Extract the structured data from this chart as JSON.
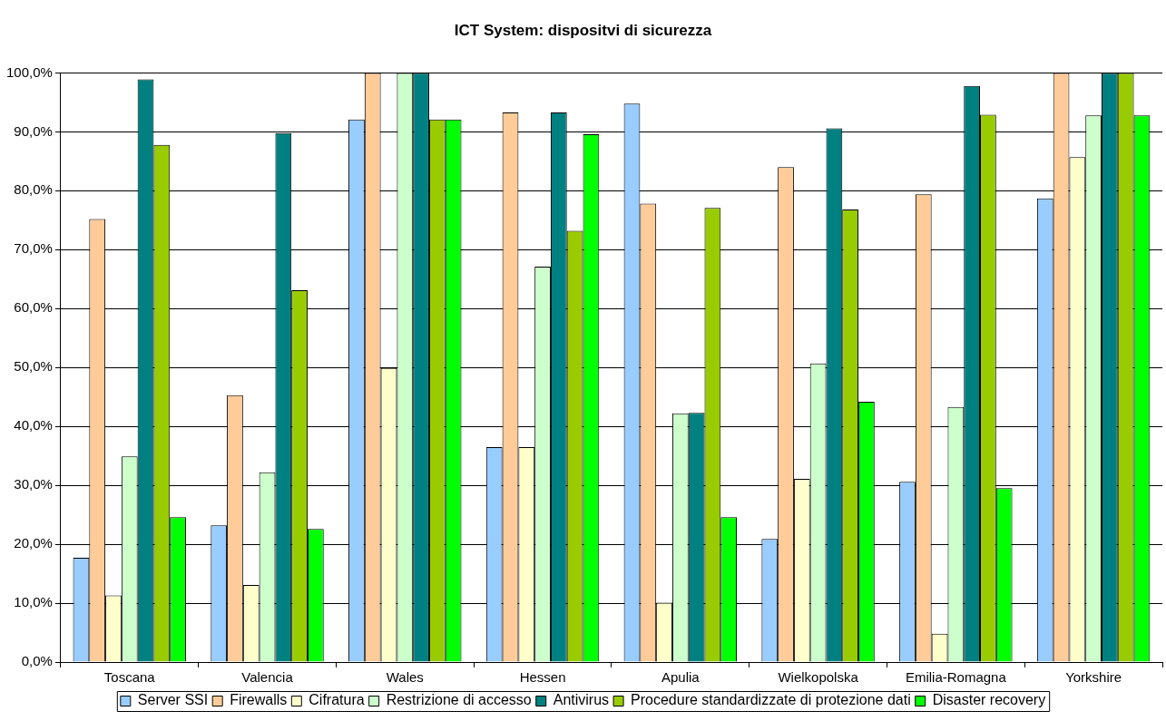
{
  "chart_data": {
    "type": "bar",
    "title": "ICT System: dispositvi di sicurezza",
    "categories": [
      "Toscana",
      "Valencia",
      "Wales",
      "Hessen",
      "Apulia",
      "Wielkopolska",
      "Emilia-Romagna",
      "Yorkshire"
    ],
    "series": [
      {
        "name": "Server SSI",
        "color": "#99ccff",
        "values": [
          17.7,
          23.2,
          92.1,
          36.5,
          94.8,
          20.9,
          30.6,
          78.7
        ]
      },
      {
        "name": "Firewalls",
        "color": "#ffcc99",
        "values": [
          75.2,
          45.3,
          100,
          93.3,
          77.8,
          84.0,
          79.4,
          100
        ]
      },
      {
        "name": "Cifratura",
        "color": "#ffffcc",
        "values": [
          11.3,
          13.1,
          49.9,
          36.5,
          10.1,
          31.1,
          4.8,
          85.7
        ]
      },
      {
        "name": "Restrizione di accesso",
        "color": "#ccffcc",
        "values": [
          34.9,
          32.2,
          100,
          67.1,
          42.2,
          50.7,
          43.3,
          92.8
        ]
      },
      {
        "name": "Antivirus",
        "color": "#008080",
        "values": [
          98.9,
          89.8,
          100,
          93.3,
          42.3,
          90.6,
          97.8,
          100
        ]
      },
      {
        "name": "Procedure standardizzate di protezione dati",
        "color": "#99cc00",
        "values": [
          87.8,
          63.1,
          92.1,
          73.2,
          77.1,
          76.8,
          92.9,
          100
        ]
      },
      {
        "name": "Disaster recovery",
        "color": "#00ff00",
        "values": [
          24.6,
          22.6,
          92.1,
          89.6,
          24.6,
          44.2,
          29.5,
          92.8
        ]
      }
    ],
    "ylim": [
      0,
      100
    ],
    "yticks": [
      {
        "value": 0,
        "label": "0,0%"
      },
      {
        "value": 10,
        "label": "10,0%"
      },
      {
        "value": 20,
        "label": "20,0%"
      },
      {
        "value": 30,
        "label": "30,0%"
      },
      {
        "value": 40,
        "label": "40,0%"
      },
      {
        "value": 50,
        "label": "50,0%"
      },
      {
        "value": 60,
        "label": "60,0%"
      },
      {
        "value": 70,
        "label": "70,0%"
      },
      {
        "value": 80,
        "label": "80,0%"
      },
      {
        "value": 90,
        "label": "90,0%"
      },
      {
        "value": 100,
        "label": "100,0%"
      }
    ],
    "grid": "y",
    "legend": "bottom"
  }
}
